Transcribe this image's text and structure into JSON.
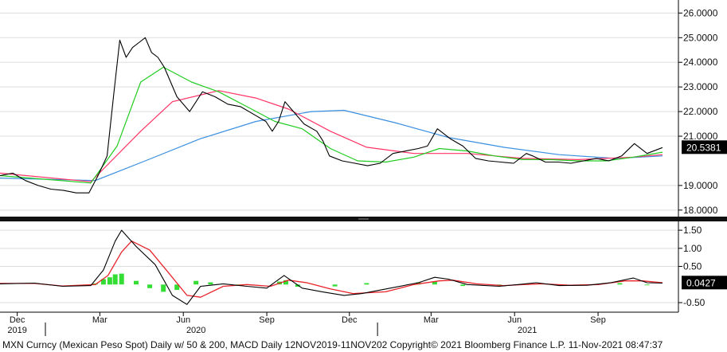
{
  "footer": "MXN Curncy (Mexican Peso Spot) Daily w/ 50 & 200, MACD  Daily 12NOV2019-11NOV202 Copyright© 2021 Bloomberg Finance L.P. 11-Nov-2021 08:47:37",
  "colors": {
    "price": "#000000",
    "ma_short": "#1fcc1f",
    "ma_long": "#ff3366",
    "ma_200": "#3a8fe0",
    "macd_line": "#000000",
    "signal_line": "#e8232a",
    "histogram": "#33dd33",
    "badge": "#000000",
    "grid": "#dddddd"
  },
  "chart_data": [
    {
      "type": "line",
      "ylim": [
        17.8,
        26.4
      ],
      "y_ticks": [
        "26.0000",
        "25.0000",
        "24.0000",
        "23.0000",
        "22.0000",
        "21.0000",
        "19.0000",
        "18.0000"
      ],
      "y_tick_values": [
        26,
        25,
        24,
        23,
        22,
        21,
        19,
        18
      ],
      "last_value_label": "20.5381",
      "last_value": 20.5381,
      "series": [
        {
          "key": "price",
          "x": [
            "2019-11-12",
            "2019-11-26",
            "2019-12-10",
            "2019-12-24",
            "2020-01-07",
            "2020-01-21",
            "2020-02-04",
            "2020-02-18",
            "2020-02-28",
            "2020-03-09",
            "2020-03-16",
            "2020-03-23",
            "2020-03-30",
            "2020-04-06",
            "2020-04-13",
            "2020-04-20",
            "2020-04-27",
            "2020-05-04",
            "2020-05-11",
            "2020-05-25",
            "2020-06-08",
            "2020-06-22",
            "2020-07-06",
            "2020-07-20",
            "2020-08-03",
            "2020-08-17",
            "2020-08-31",
            "2020-09-07",
            "2020-09-14",
            "2020-09-21",
            "2020-09-28",
            "2020-10-12",
            "2020-10-26",
            "2020-11-02",
            "2020-11-09",
            "2020-11-23",
            "2020-12-07",
            "2020-12-21",
            "2021-01-04",
            "2021-01-18",
            "2021-02-01",
            "2021-02-15",
            "2021-02-25",
            "2021-03-08",
            "2021-03-22",
            "2021-04-05",
            "2021-04-19",
            "2021-05-03",
            "2021-05-17",
            "2021-05-31",
            "2021-06-14",
            "2021-06-21",
            "2021-07-05",
            "2021-07-19",
            "2021-08-02",
            "2021-08-16",
            "2021-08-30",
            "2021-09-13",
            "2021-09-27",
            "2021-10-11",
            "2021-10-25",
            "2021-11-11"
          ],
          "values": [
            19.4,
            19.5,
            19.2,
            19.0,
            18.85,
            18.8,
            18.7,
            18.7,
            19.4,
            20.2,
            22.6,
            24.9,
            24.2,
            24.6,
            24.8,
            25.0,
            24.4,
            24.2,
            23.8,
            22.6,
            22.0,
            22.8,
            22.6,
            22.3,
            22.2,
            21.9,
            21.6,
            21.2,
            21.6,
            22.4,
            22.1,
            21.5,
            21.2,
            20.8,
            20.2,
            20.0,
            19.9,
            19.8,
            19.9,
            20.3,
            20.4,
            20.5,
            20.6,
            21.3,
            20.9,
            20.6,
            20.1,
            20.0,
            19.95,
            19.9,
            20.3,
            20.2,
            19.95,
            19.95,
            19.9,
            20.0,
            20.1,
            20.0,
            20.2,
            20.7,
            20.3,
            20.54
          ]
        },
        {
          "key": "ma_short",
          "x": [
            "2019-11-12",
            "2020-02-20",
            "2020-03-20",
            "2020-04-15",
            "2020-05-10",
            "2020-06-10",
            "2020-07-10",
            "2020-08-10",
            "2020-09-10",
            "2020-10-10",
            "2020-11-10",
            "2020-12-10",
            "2021-01-10",
            "2021-02-10",
            "2021-03-10",
            "2021-04-10",
            "2021-05-10",
            "2021-06-10",
            "2021-07-10",
            "2021-08-10",
            "2021-09-10",
            "2021-10-10",
            "2021-11-11"
          ],
          "values": [
            19.4,
            19.1,
            20.6,
            23.2,
            23.8,
            23.2,
            22.8,
            22.2,
            21.6,
            21.3,
            20.5,
            20.0,
            19.95,
            20.15,
            20.5,
            20.4,
            20.2,
            20.05,
            20.05,
            20.0,
            20.0,
            20.15,
            20.35
          ]
        },
        {
          "key": "ma_long",
          "x": [
            "2019-11-12",
            "2020-02-20",
            "2020-04-15",
            "2020-05-20",
            "2020-07-10",
            "2020-08-20",
            "2020-09-25",
            "2020-11-10",
            "2020-12-20",
            "2021-02-10",
            "2021-04-10",
            "2021-06-10",
            "2021-08-10",
            "2021-10-10",
            "2021-11-11"
          ],
          "values": [
            19.5,
            19.15,
            21.2,
            22.4,
            22.85,
            22.55,
            22.1,
            21.2,
            20.55,
            20.3,
            20.3,
            20.1,
            20.05,
            20.15,
            20.25
          ]
        },
        {
          "key": "ma_200",
          "x": [
            "2019-11-12",
            "2020-02-25",
            "2020-04-20",
            "2020-06-20",
            "2020-08-20",
            "2020-10-20",
            "2020-11-25",
            "2021-01-20",
            "2021-03-20",
            "2021-05-20",
            "2021-07-20",
            "2021-09-20",
            "2021-11-11"
          ],
          "values": [
            19.3,
            19.2,
            20.0,
            20.9,
            21.6,
            22.0,
            22.05,
            21.55,
            20.95,
            20.55,
            20.25,
            20.1,
            20.2
          ]
        }
      ]
    },
    {
      "type": "line",
      "ylim": [
        -0.72,
        1.7
      ],
      "y_ticks": [
        "1.50",
        "1.00",
        "0.50",
        "-0.50"
      ],
      "y_tick_values": [
        1.5,
        1.0,
        0.5,
        -0.5
      ],
      "last_value_label": "0.0427",
      "last_value": 0.0427,
      "series": [
        {
          "key": "macd_line",
          "x": [
            "2019-11-12",
            "2019-12-20",
            "2020-01-20",
            "2020-02-20",
            "2020-03-05",
            "2020-03-18",
            "2020-03-25",
            "2020-04-10",
            "2020-05-01",
            "2020-05-20",
            "2020-06-05",
            "2020-06-20",
            "2020-07-15",
            "2020-08-10",
            "2020-09-01",
            "2020-09-20",
            "2020-10-10",
            "2020-11-01",
            "2020-11-25",
            "2020-12-15",
            "2021-01-15",
            "2021-02-15",
            "2021-03-05",
            "2021-03-20",
            "2021-04-10",
            "2021-05-15",
            "2021-06-05",
            "2021-06-25",
            "2021-07-20",
            "2021-08-20",
            "2021-09-15",
            "2021-10-10",
            "2021-10-25",
            "2021-11-11"
          ],
          "values": [
            0.02,
            0.04,
            -0.05,
            -0.03,
            0.4,
            1.2,
            1.5,
            1.05,
            0.55,
            -0.3,
            -0.55,
            -0.05,
            0.02,
            -0.05,
            -0.1,
            0.25,
            -0.1,
            -0.2,
            -0.3,
            -0.25,
            -0.1,
            0.05,
            0.2,
            0.15,
            0.0,
            -0.05,
            0.0,
            0.05,
            -0.03,
            -0.02,
            0.05,
            0.18,
            0.05,
            0.04
          ]
        },
        {
          "key": "signal_line",
          "x": [
            "2019-11-12",
            "2019-12-20",
            "2020-01-20",
            "2020-02-25",
            "2020-03-10",
            "2020-03-25",
            "2020-04-05",
            "2020-04-25",
            "2020-05-15",
            "2020-06-05",
            "2020-06-20",
            "2020-07-15",
            "2020-08-10",
            "2020-09-05",
            "2020-09-25",
            "2020-10-15",
            "2020-11-10",
            "2020-12-05",
            "2021-01-10",
            "2021-02-10",
            "2021-03-10",
            "2021-03-25",
            "2021-04-20",
            "2021-05-20",
            "2021-06-10",
            "2021-07-01",
            "2021-08-01",
            "2021-09-01",
            "2021-10-01",
            "2021-10-20",
            "2021-11-11"
          ],
          "values": [
            0.03,
            0.03,
            -0.04,
            0.0,
            0.25,
            0.9,
            1.2,
            0.95,
            0.35,
            -0.3,
            -0.35,
            -0.05,
            0.0,
            -0.05,
            0.12,
            0.05,
            -0.12,
            -0.25,
            -0.2,
            0.0,
            0.1,
            0.12,
            0.02,
            -0.03,
            0.0,
            0.02,
            -0.02,
            0.0,
            0.1,
            0.1,
            0.05
          ]
        }
      ],
      "histogram": {
        "x": [
          "2020-02-25",
          "2020-03-05",
          "2020-03-12",
          "2020-03-18",
          "2020-03-25",
          "2020-04-10",
          "2020-04-25",
          "2020-05-10",
          "2020-05-25",
          "2020-06-15",
          "2020-07-01",
          "2020-08-01",
          "2020-09-15",
          "2020-09-22",
          "2020-10-05",
          "2020-11-15",
          "2020-12-20",
          "2021-02-15",
          "2021-03-05",
          "2021-04-05",
          "2021-05-15",
          "2021-06-15",
          "2021-08-15",
          "2021-09-25",
          "2021-10-25"
        ],
        "values": [
          0.03,
          0.15,
          0.2,
          0.28,
          0.3,
          0.1,
          -0.1,
          -0.2,
          -0.15,
          0.1,
          0.06,
          -0.02,
          0.08,
          0.12,
          -0.06,
          -0.05,
          0.04,
          0.06,
          0.08,
          -0.04,
          -0.03,
          0.03,
          -0.02,
          0.04,
          -0.02
        ]
      }
    }
  ],
  "x_axis": {
    "months": [
      {
        "label": "Dec",
        "date": "2019-12-01"
      },
      {
        "label": "Mar",
        "date": "2020-03-01"
      },
      {
        "label": "Jun",
        "date": "2020-06-01"
      },
      {
        "label": "Sep",
        "date": "2020-09-01"
      },
      {
        "label": "Dec",
        "date": "2020-12-01"
      },
      {
        "label": "Mar",
        "date": "2021-03-01"
      },
      {
        "label": "Jun",
        "date": "2021-06-01"
      },
      {
        "label": "Sep",
        "date": "2021-09-01"
      }
    ],
    "years": [
      {
        "label": "2019",
        "date": "2019-12-01"
      },
      {
        "label": "2020",
        "date": "2020-06-15"
      },
      {
        "label": "2021",
        "date": "2021-06-15"
      }
    ],
    "range": [
      "2019-11-12",
      "2021-11-11"
    ]
  }
}
